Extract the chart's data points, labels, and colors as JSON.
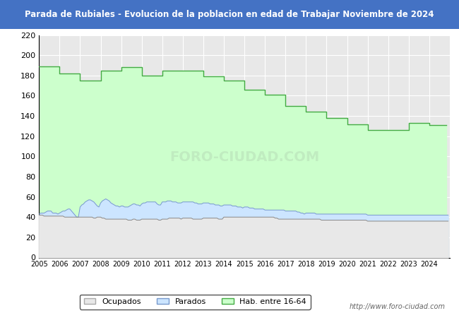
{
  "title": "Parada de Rubiales - Evolucion de la poblacion en edad de Trabajar Noviembre de 2024",
  "title_bg": "#4472c4",
  "title_color": "white",
  "ylim": [
    0,
    220
  ],
  "yticks": [
    0,
    20,
    40,
    60,
    80,
    100,
    120,
    140,
    160,
    180,
    200,
    220
  ],
  "years": [
    2005,
    2006,
    2007,
    2008,
    2009,
    2010,
    2011,
    2012,
    2013,
    2014,
    2015,
    2016,
    2017,
    2018,
    2019,
    2020,
    2021,
    2022,
    2023,
    2024
  ],
  "xtick_years": [
    2005,
    2006,
    2007,
    2008,
    2009,
    2010,
    2011,
    2012,
    2013,
    2014,
    2015,
    2016,
    2017,
    2018,
    2019,
    2020,
    2021,
    2022,
    2023,
    2024
  ],
  "hab_16_64_annual": [
    189,
    182,
    175,
    185,
    188,
    180,
    185,
    185,
    179,
    175,
    166,
    161,
    150,
    144,
    138,
    132,
    126,
    126,
    133,
    131
  ],
  "parados_monthly": [
    43,
    44,
    44,
    44,
    45,
    46,
    46,
    46,
    44,
    44,
    44,
    43,
    44,
    45,
    46,
    46,
    47,
    48,
    48,
    46,
    44,
    42,
    40,
    40,
    50,
    52,
    53,
    55,
    56,
    57,
    57,
    56,
    55,
    53,
    51,
    50,
    54,
    56,
    57,
    58,
    57,
    56,
    54,
    53,
    52,
    51,
    51,
    50,
    51,
    51,
    50,
    50,
    50,
    51,
    52,
    53,
    53,
    52,
    52,
    51,
    53,
    54,
    54,
    55,
    55,
    55,
    55,
    55,
    55,
    53,
    52,
    52,
    55,
    55,
    55,
    56,
    56,
    56,
    55,
    55,
    55,
    54,
    54,
    54,
    55,
    55,
    55,
    55,
    55,
    55,
    55,
    54,
    54,
    53,
    53,
    53,
    54,
    54,
    54,
    54,
    53,
    53,
    53,
    52,
    52,
    52,
    51,
    51,
    52,
    52,
    52,
    52,
    52,
    51,
    51,
    51,
    50,
    50,
    50,
    49,
    50,
    50,
    50,
    49,
    49,
    49,
    48,
    48,
    48,
    48,
    48,
    48,
    47,
    47,
    47,
    47,
    47,
    47,
    47,
    47,
    47,
    47,
    47,
    47,
    46,
    46,
    46,
    46,
    46,
    46,
    46,
    45,
    45,
    44,
    44,
    43,
    44,
    44,
    44,
    44,
    44,
    44,
    43,
    43,
    43,
    43,
    43,
    43,
    43,
    43,
    43,
    43,
    43,
    43,
    43,
    43,
    43,
    43,
    43,
    43,
    43,
    43,
    43,
    43,
    43,
    43,
    43,
    43,
    43,
    43,
    43,
    43,
    42,
    42,
    42,
    42,
    42,
    42,
    42,
    42,
    42,
    42,
    42,
    42,
    42,
    42,
    42,
    42,
    42,
    42,
    42,
    42,
    42,
    42,
    42,
    42,
    42,
    42,
    42,
    42,
    42,
    42,
    42,
    42,
    42,
    42,
    42,
    42,
    42,
    42,
    42,
    42,
    42,
    42,
    42,
    42,
    42,
    42,
    42,
    42
  ],
  "ocupados_monthly": [
    42,
    42,
    42,
    41,
    41,
    41,
    41,
    41,
    41,
    41,
    41,
    41,
    41,
    41,
    41,
    40,
    40,
    40,
    40,
    40,
    40,
    40,
    40,
    40,
    40,
    40,
    40,
    40,
    40,
    40,
    40,
    40,
    39,
    39,
    40,
    40,
    40,
    39,
    39,
    38,
    38,
    38,
    38,
    38,
    38,
    38,
    38,
    38,
    38,
    38,
    38,
    38,
    37,
    37,
    37,
    38,
    38,
    37,
    37,
    37,
    38,
    38,
    38,
    38,
    38,
    38,
    38,
    38,
    38,
    38,
    37,
    37,
    38,
    38,
    38,
    38,
    39,
    39,
    39,
    39,
    39,
    39,
    39,
    38,
    39,
    39,
    39,
    39,
    39,
    39,
    38,
    38,
    38,
    38,
    38,
    38,
    39,
    39,
    39,
    39,
    39,
    39,
    39,
    39,
    39,
    38,
    38,
    38,
    40,
    40,
    40,
    40,
    40,
    40,
    40,
    40,
    40,
    40,
    40,
    40,
    40,
    40,
    40,
    40,
    40,
    40,
    40,
    40,
    40,
    40,
    40,
    40,
    40,
    40,
    40,
    40,
    40,
    40,
    39,
    39,
    38,
    38,
    38,
    38,
    38,
    38,
    38,
    38,
    38,
    38,
    38,
    38,
    38,
    38,
    38,
    38,
    38,
    38,
    38,
    38,
    38,
    38,
    38,
    38,
    38,
    37,
    37,
    37,
    37,
    37,
    37,
    37,
    37,
    37,
    37,
    37,
    37,
    37,
    37,
    37,
    37,
    37,
    37,
    37,
    37,
    37,
    37,
    37,
    37,
    37,
    37,
    37,
    36,
    36,
    36,
    36,
    36,
    36,
    36,
    36,
    36,
    36,
    36,
    36,
    36,
    36,
    36,
    36,
    36,
    36,
    36,
    36,
    36,
    36,
    36,
    36,
    36,
    36,
    36,
    36,
    36,
    36,
    36,
    36,
    36,
    36,
    36,
    36,
    36,
    36,
    36,
    36,
    36,
    36,
    36,
    36,
    36,
    36,
    36,
    36
  ],
  "hab_color": "#ccffcc",
  "hab_line_color": "#44aa44",
  "parados_color": "#cce5ff",
  "parados_line_color": "#7799cc",
  "ocupados_color": "#e8e8e8",
  "ocupados_line_color": "#888888",
  "watermark": "http://www.foro-ciudad.com",
  "watermark_plot": "FORO-CIUDAD.COM",
  "legend_labels": [
    "Ocupados",
    "Parados",
    "Hab. entre 16-64"
  ],
  "background_color": "#ffffff",
  "plot_bg": "#e8e8e8",
  "grid_color": "#ffffff"
}
